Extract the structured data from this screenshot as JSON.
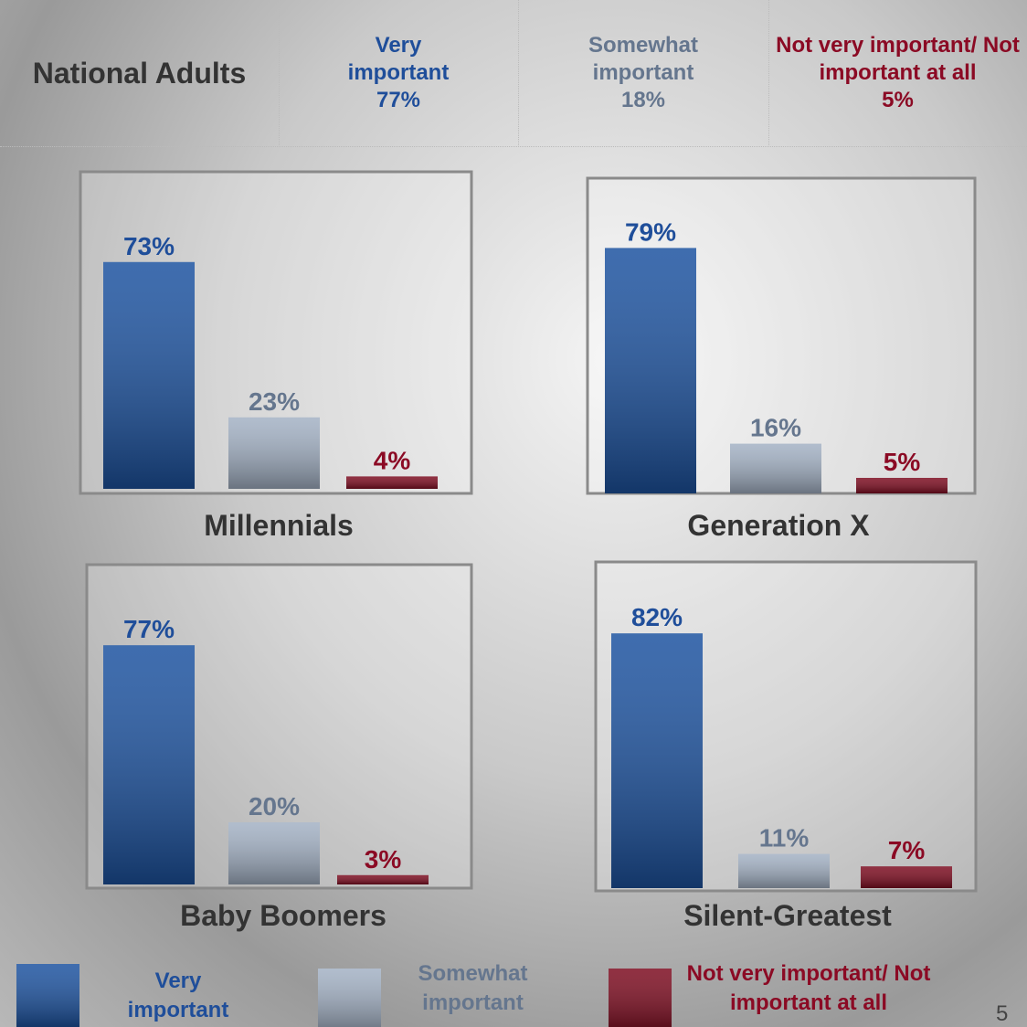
{
  "header": {
    "title": "National Adults",
    "columns": [
      {
        "label": "Very important",
        "value": 77,
        "value_label": "77%"
      },
      {
        "label": "Somewhat important",
        "value": 18,
        "value_label": "18%"
      },
      {
        "label": "Not very important/ Not important at all",
        "value": 5,
        "value_label": "5%"
      }
    ]
  },
  "legend": [
    {
      "name": "Very important",
      "color": "#1d53a0"
    },
    {
      "name": "Somewhat important",
      "color": "#a3b1c4"
    },
    {
      "name": "Not very important/ Not important at all",
      "color": "#7d0c20"
    }
  ],
  "chart_data": [
    {
      "type": "bar",
      "title": "Millennials",
      "values": [
        73,
        23,
        4
      ],
      "value_labels": [
        "73%",
        "23%",
        "4%"
      ]
    },
    {
      "type": "bar",
      "title": "Generation X",
      "values": [
        79,
        16,
        5
      ],
      "value_labels": [
        "79%",
        "16%",
        "5%"
      ]
    },
    {
      "type": "bar",
      "title": "Baby Boomers",
      "values": [
        77,
        20,
        3
      ],
      "value_labels": [
        "77%",
        "20%",
        "3%"
      ]
    },
    {
      "type": "bar",
      "title": "Silent-Greatest",
      "values": [
        82,
        11,
        7
      ],
      "value_labels": [
        "82%",
        "11%",
        "7%"
      ]
    }
  ],
  "page_number": "5"
}
